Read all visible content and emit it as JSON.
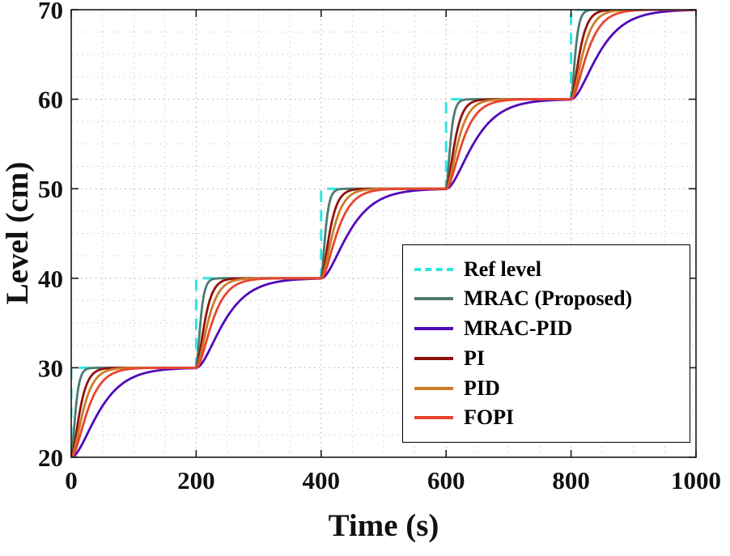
{
  "chart_data": {
    "type": "line",
    "title": "",
    "xlabel": "Time (s)",
    "ylabel": "Level (cm)",
    "xlim": [
      0,
      1000
    ],
    "ylim": [
      20,
      70
    ],
    "xticks": [
      0,
      200,
      400,
      600,
      800,
      1000
    ],
    "yticks": [
      20,
      30,
      40,
      50,
      60,
      70
    ],
    "x_minor_step": 50,
    "y_minor_step": 2.5,
    "grid": "dotted major and minor",
    "legend_position": "middle-right",
    "initial_level": 20,
    "step_times": [
      0,
      200,
      400,
      600,
      800
    ],
    "step_levels": [
      30,
      40,
      50,
      60,
      70
    ],
    "series": [
      {
        "name": "Ref level",
        "color": "#2ee6e2",
        "style": "dashed",
        "kind": "staircase",
        "tau": 0
      },
      {
        "name": "MRAC (Proposed)",
        "color": "#4e7a6e",
        "style": "solid",
        "kind": "response",
        "tau": 4
      },
      {
        "name": "MRAC-PID",
        "color": "#5208b8",
        "style": "solid",
        "kind": "response",
        "tau": 26
      },
      {
        "name": "PI",
        "color": "#8f120b",
        "style": "solid",
        "kind": "response",
        "tau": 8
      },
      {
        "name": "PID",
        "color": "#ca7d28",
        "style": "solid",
        "kind": "response",
        "tau": 11
      },
      {
        "name": "FOPI",
        "color": "#e94630",
        "style": "solid",
        "kind": "response",
        "tau": 15
      }
    ]
  }
}
